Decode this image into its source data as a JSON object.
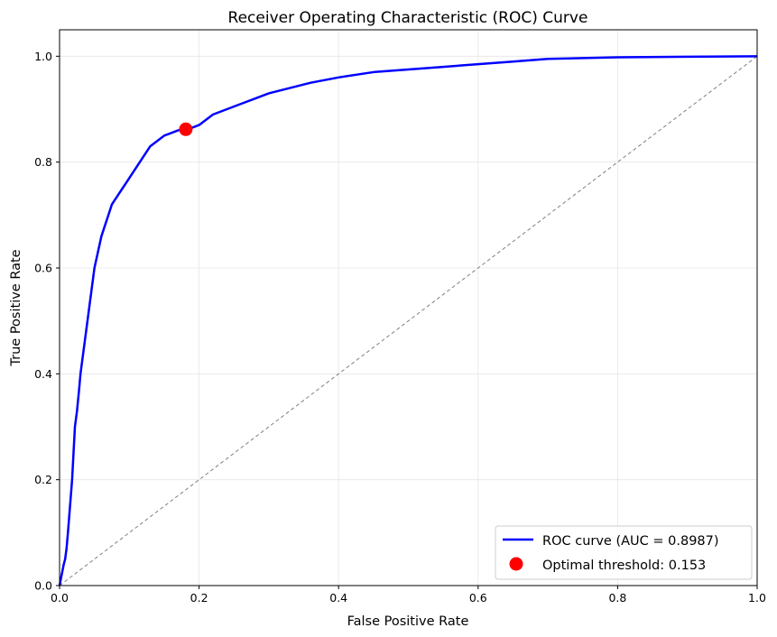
{
  "chart_data": {
    "type": "line",
    "title": "Receiver Operating Characteristic (ROC) Curve",
    "xlabel": "False Positive Rate",
    "ylabel": "True Positive Rate",
    "xlim": [
      0,
      1
    ],
    "ylim": [
      0,
      1.05
    ],
    "x_ticks": [
      "0.0",
      "0.2",
      "0.4",
      "0.6",
      "0.8",
      "1.0"
    ],
    "y_ticks": [
      "0.0",
      "0.2",
      "0.4",
      "0.6",
      "0.8",
      "1.0"
    ],
    "grid": true,
    "legend_position": "lower-right",
    "series": [
      {
        "name": "ROC curve (AUC = 0.8987)",
        "color": "#0000ff",
        "x": [
          0.0,
          0.003,
          0.006,
          0.008,
          0.01,
          0.012,
          0.015,
          0.018,
          0.02,
          0.022,
          0.025,
          0.028,
          0.03,
          0.033,
          0.036,
          0.04,
          0.043,
          0.047,
          0.05,
          0.055,
          0.06,
          0.065,
          0.07,
          0.075,
          0.08,
          0.085,
          0.09,
          0.095,
          0.1,
          0.105,
          0.11,
          0.115,
          0.12,
          0.125,
          0.13,
          0.14,
          0.15,
          0.16,
          0.17,
          0.18,
          0.19,
          0.2,
          0.21,
          0.22,
          0.24,
          0.26,
          0.28,
          0.3,
          0.33,
          0.36,
          0.4,
          0.45,
          0.5,
          0.55,
          0.6,
          0.65,
          0.7,
          0.8,
          0.9,
          1.0
        ],
        "y": [
          0.0,
          0.02,
          0.04,
          0.05,
          0.07,
          0.1,
          0.15,
          0.2,
          0.25,
          0.3,
          0.33,
          0.37,
          0.4,
          0.43,
          0.46,
          0.5,
          0.53,
          0.57,
          0.6,
          0.63,
          0.66,
          0.68,
          0.7,
          0.72,
          0.73,
          0.74,
          0.75,
          0.76,
          0.77,
          0.78,
          0.79,
          0.8,
          0.81,
          0.82,
          0.83,
          0.84,
          0.85,
          0.855,
          0.86,
          0.862,
          0.865,
          0.87,
          0.88,
          0.89,
          0.9,
          0.91,
          0.92,
          0.93,
          0.94,
          0.95,
          0.96,
          0.97,
          0.975,
          0.98,
          0.985,
          0.99,
          0.995,
          0.998,
          0.999,
          1.0
        ]
      },
      {
        "name": "",
        "color": "#808080",
        "style": "dashed",
        "x": [
          0,
          1
        ],
        "y": [
          0,
          1
        ]
      }
    ],
    "optimal_point": {
      "name": "Optimal threshold: 0.153",
      "color": "#ff0000",
      "x": 0.181,
      "y": 0.862
    }
  }
}
